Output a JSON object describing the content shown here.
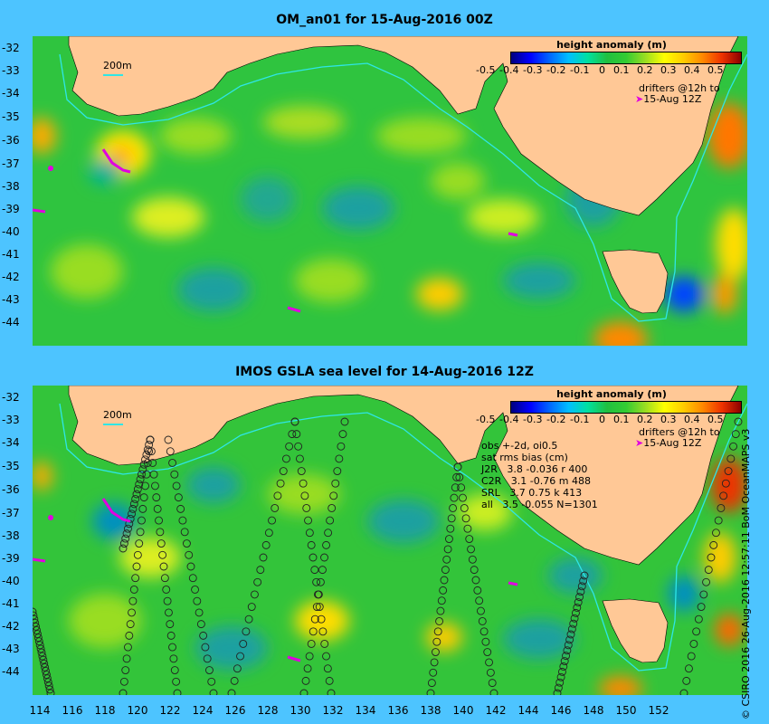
{
  "map_top": {
    "title": "OM_an01 for 15-Aug-2016 00Z",
    "scale_label": "200m",
    "colorbar_title": "height anomaly (m)",
    "colorbar_ticks": [
      "-0.5",
      "-0.4",
      "-0.3",
      "-0.2",
      "-0.1",
      "0",
      "0.1",
      "0.2",
      "0.3",
      "0.4",
      "0.5"
    ],
    "drifter_note_line1": "drifters @12h to",
    "drifter_note_line2": "15-Aug 12Z"
  },
  "map_bottom": {
    "title": "IMOS GSLA sea level  for 14-Aug-2016 12Z",
    "scale_label": "200m",
    "colorbar_title": "height anomaly (m)",
    "colorbar_ticks": [
      "-0.5",
      "-0.4",
      "-0.3",
      "-0.2",
      "-0.1",
      "0",
      "0.1",
      "0.2",
      "0.3",
      "0.4",
      "0.5"
    ],
    "drifter_note_line1": "drifters @12h to",
    "drifter_note_line2": "15-Aug 12Z",
    "stats": {
      "line1": "obs +-2d, oi0.5",
      "line2": "sat rms bias (cm)",
      "line3": "J2R   3.8 -0.036 r 400",
      "line4": "C2R   3.1 -0.76 m 488",
      "line5": "SRL   3.7 0.75 k 413",
      "line6": "all   3.5 -0.055 N=1301"
    }
  },
  "lat_ticks": [
    "-32",
    "-33",
    "-34",
    "-35",
    "-36",
    "-37",
    "-38",
    "-39",
    "-40",
    "-41",
    "-42",
    "-43",
    "-44"
  ],
  "lon_ticks": [
    "114",
    "116",
    "118",
    "120",
    "122",
    "124",
    "126",
    "128",
    "130",
    "132",
    "134",
    "136",
    "138",
    "140",
    "142",
    "144",
    "146",
    "148",
    "150",
    "152"
  ],
  "credit": "© CSIRO 2016  26-Aug-2016 12:57:11 BoM OceanMAPS v3",
  "colors": {
    "background": "#4dc4ff",
    "land": "#ffc896",
    "ocean_base": "#1fc04a",
    "isobath": "#2ee6e6",
    "drifter": "#e000e0"
  }
}
